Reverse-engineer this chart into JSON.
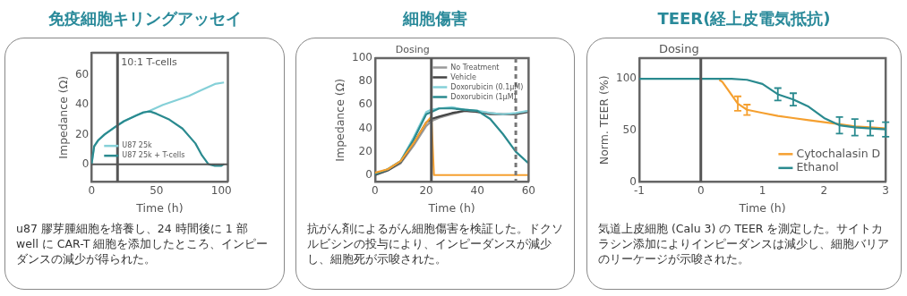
{
  "chart_data": [
    {
      "type": "line",
      "title": "免疫細胞キリングアッセイ",
      "xlabel": "Time (h)",
      "ylabel": "Impedance (Ω)",
      "xlim": [
        0,
        105
      ],
      "xticks": [
        0,
        50,
        100
      ],
      "ylim": [
        -12,
        75
      ],
      "yticks": [
        0,
        20,
        40,
        60
      ],
      "grid": false,
      "legend": "bottom left",
      "marker": "none",
      "line_style": "solid",
      "series": [
        {
          "name": "U87 25k",
          "color": "#85d0d8",
          "x": [
            0,
            2,
            5,
            10,
            18,
            25,
            35,
            45,
            55,
            65,
            75,
            85,
            95,
            102
          ],
          "values": [
            0,
            12,
            16,
            20,
            25,
            29,
            33,
            36,
            40,
            43,
            46,
            50,
            54,
            55
          ]
        },
        {
          "name": "U87 25k + T-cells",
          "color": "#2a8a8f",
          "x": [
            0,
            2,
            5,
            10,
            18,
            25,
            35,
            40,
            45,
            50,
            60,
            70,
            80,
            85,
            90,
            95,
            100,
            102
          ],
          "values": [
            0,
            12,
            16,
            20,
            25,
            29,
            33,
            35,
            35.5,
            34,
            30,
            24,
            14,
            6,
            0,
            -1,
            -1,
            0
          ]
        }
      ],
      "ref_lines": [
        {
          "axis": "y",
          "value": 0,
          "color": "#555555"
        },
        {
          "axis": "x",
          "value": 20,
          "color": "#555555"
        }
      ],
      "annotations": [
        {
          "text": "10:1 T-cells",
          "x": 20,
          "y": 68
        },
        "u87 膠芽腫細胞を培養し、24 時間後に 1 部 well に CAR-T 細胞を添加したところ、インピーダンスの減少が得られた。"
      ]
    },
    {
      "type": "line",
      "title": "細胞傷害",
      "xlabel": "Time (h)",
      "ylabel": "Impedance (Ω)",
      "xlim": [
        0,
        60
      ],
      "xticks": [
        0,
        20,
        40,
        60
      ],
      "ylim": [
        -6,
        100
      ],
      "yticks": [
        0,
        20,
        40,
        60,
        80,
        100
      ],
      "grid": false,
      "legend": "top right",
      "marker": "none",
      "line_style": "solid",
      "series": [
        {
          "name": "No Treatment",
          "color": "#9a9a9a",
          "x": [
            0,
            5,
            10,
            15,
            20,
            22,
            25,
            30,
            35,
            40,
            45,
            50,
            55,
            60
          ],
          "values": [
            0,
            4,
            10,
            25,
            42,
            46,
            49,
            52,
            55,
            54,
            53,
            52,
            52,
            55
          ]
        },
        {
          "name": "Vehicle",
          "color": "#444444",
          "x": [
            0,
            5,
            10,
            15,
            20,
            22,
            25,
            30,
            35,
            40,
            45,
            50,
            55,
            60
          ],
          "values": [
            0,
            4,
            11,
            27,
            45,
            48,
            50,
            53,
            55,
            54,
            52,
            52,
            52,
            54
          ]
        },
        {
          "name": "Doxorubicin (0.1μM)",
          "color": "#85d0d8",
          "x": [
            0,
            5,
            10,
            15,
            20,
            22,
            25,
            30,
            35,
            40,
            45,
            50,
            55,
            60
          ],
          "values": [
            1,
            5,
            12,
            32,
            54,
            56,
            57,
            58,
            56,
            55,
            53,
            52,
            53,
            55
          ]
        },
        {
          "name": "Doxorubicin (1μM)",
          "color": "#2a8a8f",
          "x": [
            0,
            5,
            10,
            15,
            20,
            22,
            25,
            30,
            35,
            40,
            45,
            50,
            55,
            60
          ],
          "values": [
            1,
            5,
            12,
            30,
            52,
            54,
            57,
            57,
            56,
            55,
            48,
            35,
            20,
            10
          ]
        },
        {
          "color": "#f5a030",
          "x": [
            0,
            5,
            10,
            15,
            20,
            22,
            23,
            30,
            40,
            50,
            60
          ],
          "values": [
            2,
            5,
            12,
            27,
            45,
            50,
            0,
            0,
            0,
            0,
            0
          ]
        }
      ],
      "ref_lines": [
        {
          "axis": "x",
          "value": 22,
          "color": "#555555",
          "label": "Dosing"
        },
        {
          "axis": "x",
          "value": 55,
          "color": "#777777",
          "line_style": "dashed"
        }
      ],
      "annotations": [
        "抗がん剤によるがん細胞傷害を検証した。ドクソルビシンの投与により、インピーダンスが減少し、細胞死が示唆された。"
      ]
    },
    {
      "type": "line",
      "title": "TEER(経上皮電気抵抗)",
      "xlabel": "Time (h)",
      "ylabel": "Norm. TEER (%)",
      "xlim": [
        -1,
        3
      ],
      "xticks": [
        -1,
        0,
        1,
        2,
        3
      ],
      "ylim": [
        0,
        120
      ],
      "yticks": [
        0,
        50,
        100
      ],
      "grid": false,
      "legend": "bottom right",
      "marker": "none",
      "line_style": "solid",
      "series": [
        {
          "name": "Cytochalasin D",
          "color": "#f5a030",
          "x": [
            0.3,
            0.35,
            0.6,
            0.75,
            1,
            1.25,
            1.5,
            1.75,
            2,
            2.25,
            2.5,
            2.75,
            3
          ],
          "values": [
            99,
            97,
            76,
            70,
            67,
            64,
            62,
            60,
            58,
            56,
            54,
            53,
            52
          ],
          "errors": [
            null,
            null,
            7,
            5,
            null,
            null,
            null,
            null,
            null,
            null,
            null,
            null,
            null
          ]
        },
        {
          "name": "Ethanol",
          "color": "#2a8a8f",
          "x": [
            -1,
            -0.75,
            -0.5,
            -0.25,
            0,
            0.25,
            0.5,
            0.75,
            1,
            1.25,
            1.5,
            1.75,
            2,
            2.25,
            2.5,
            2.75,
            3
          ],
          "values": [
            100,
            100,
            100,
            100,
            100,
            100,
            100,
            99,
            95,
            85,
            80,
            73,
            62,
            55,
            53,
            52,
            51
          ],
          "errors": [
            null,
            null,
            null,
            null,
            null,
            null,
            null,
            null,
            null,
            6,
            6,
            null,
            null,
            8,
            8,
            7,
            7
          ]
        }
      ],
      "ref_lines": [
        {
          "axis": "x",
          "value": 0,
          "color": "#555555",
          "label": "Dosing"
        }
      ],
      "annotations": [
        "気道上皮細胞 (Calu 3) の TEER を測定した。サイトカラシン添加によりインピーダンスは減少し、細胞バリアのリーケージが示唆された。"
      ]
    }
  ]
}
